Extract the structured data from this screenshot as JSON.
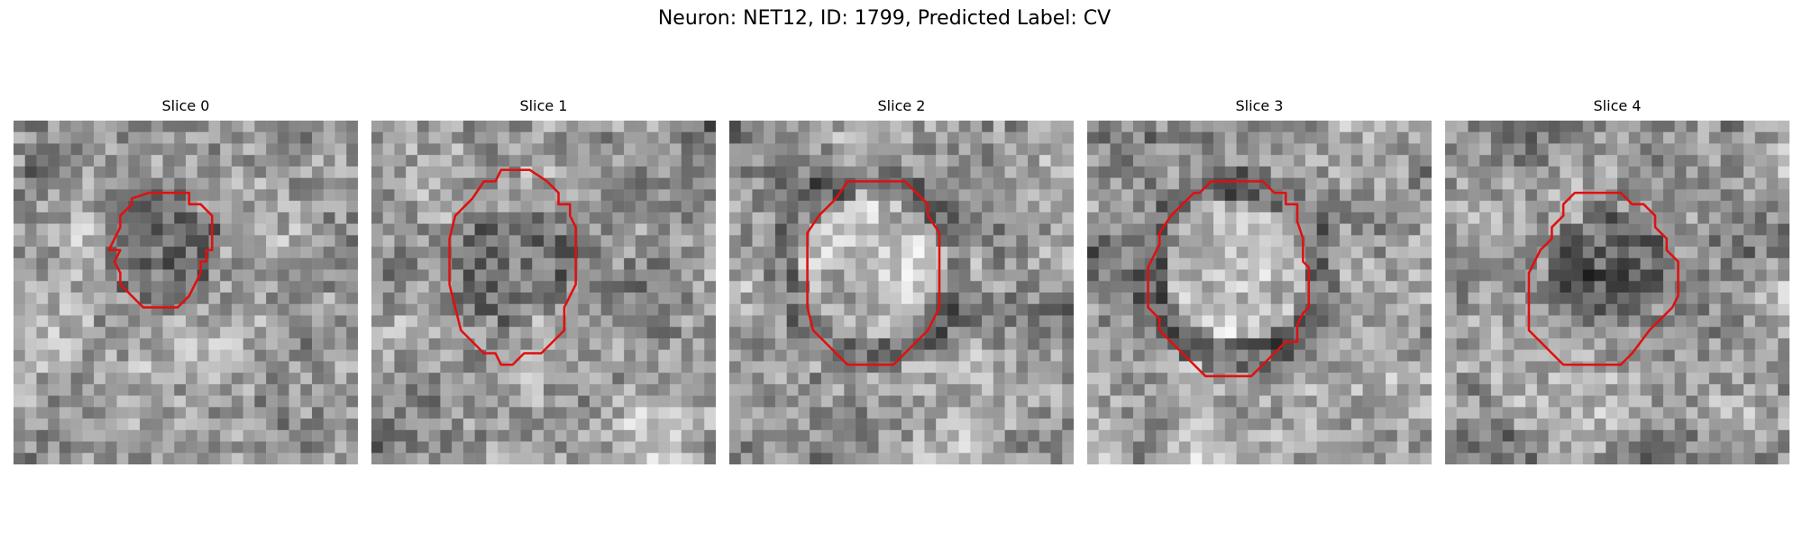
{
  "figure": {
    "title": "Neuron: NET12, ID: 1799, Predicted Label: CV",
    "outline_color": "#e01010"
  },
  "slices": [
    {
      "label": "Slice 0",
      "seed": 11,
      "center_dark": true,
      "contour": [
        [
          11.8,
          6.3
        ],
        [
          13.3,
          6.3
        ],
        [
          14.3,
          6.3
        ],
        [
          15.3,
          6.3
        ],
        [
          15.3,
          7.3
        ],
        [
          16.3,
          7.3
        ],
        [
          17.3,
          8.3
        ],
        [
          17.3,
          9.3
        ],
        [
          17.3,
          11.3
        ],
        [
          16.8,
          11.3
        ],
        [
          16.8,
          12.3
        ],
        [
          16.3,
          12.3
        ],
        [
          16.3,
          13.3
        ],
        [
          15.8,
          14.3
        ],
        [
          15.3,
          15.3
        ],
        [
          14.3,
          16.3
        ],
        [
          13.3,
          16.3
        ],
        [
          11.8,
          16.3
        ],
        [
          11.3,
          16.3
        ],
        [
          10.3,
          15.3
        ],
        [
          9.3,
          14.3
        ],
        [
          9.3,
          13.3
        ],
        [
          8.8,
          12.3
        ],
        [
          9.3,
          11.3
        ],
        [
          8.3,
          11.3
        ],
        [
          8.8,
          10.3
        ],
        [
          9.3,
          9.3
        ],
        [
          9.3,
          8.3
        ],
        [
          10.3,
          7.3
        ],
        [
          10.3,
          6.8
        ]
      ]
    },
    {
      "label": "Slice 1",
      "seed": 23,
      "center_dark": true,
      "contour": [
        [
          11.3,
          4.3
        ],
        [
          13.8,
          4.3
        ],
        [
          15.3,
          5.3
        ],
        [
          16.3,
          6.3
        ],
        [
          16.3,
          7.3
        ],
        [
          17.3,
          7.3
        ],
        [
          17.3,
          8.3
        ],
        [
          17.8,
          9.3
        ],
        [
          17.8,
          12.3
        ],
        [
          17.8,
          14.3
        ],
        [
          17.3,
          15.3
        ],
        [
          16.8,
          16.3
        ],
        [
          16.8,
          18.3
        ],
        [
          15.8,
          19.3
        ],
        [
          14.8,
          20.3
        ],
        [
          13.3,
          20.3
        ],
        [
          12.3,
          21.3
        ],
        [
          11.3,
          21.3
        ],
        [
          10.8,
          20.3
        ],
        [
          9.8,
          20.3
        ],
        [
          8.8,
          19.3
        ],
        [
          7.8,
          18.3
        ],
        [
          7.3,
          16.3
        ],
        [
          6.8,
          14.3
        ],
        [
          6.8,
          10.3
        ],
        [
          7.3,
          8.3
        ],
        [
          7.8,
          7.8
        ],
        [
          8.8,
          6.8
        ],
        [
          9.8,
          5.3
        ],
        [
          10.8,
          5.3
        ]
      ]
    },
    {
      "label": "Slice 2",
      "seed": 37,
      "center_dark": false,
      "contour": [
        [
          10.3,
          5.3
        ],
        [
          15.3,
          5.3
        ],
        [
          17.3,
          7.3
        ],
        [
          17.3,
          8.3
        ],
        [
          18.3,
          9.8
        ],
        [
          18.3,
          14.3
        ],
        [
          18.3,
          16.3
        ],
        [
          17.3,
          18.3
        ],
        [
          16.3,
          19.3
        ],
        [
          14.3,
          21.3
        ],
        [
          10.3,
          21.3
        ],
        [
          8.3,
          19.3
        ],
        [
          7.3,
          18.3
        ],
        [
          6.8,
          16.3
        ],
        [
          6.8,
          12.3
        ],
        [
          6.8,
          9.8
        ],
        [
          7.8,
          8.3
        ],
        [
          8.8,
          7.3
        ],
        [
          9.3,
          6.8
        ]
      ]
    },
    {
      "label": "Slice 3",
      "seed": 51,
      "center_dark": false,
      "contour": [
        [
          10.8,
          5.3
        ],
        [
          15.3,
          5.3
        ],
        [
          16.3,
          6.3
        ],
        [
          17.3,
          6.3
        ],
        [
          17.3,
          7.3
        ],
        [
          18.3,
          7.3
        ],
        [
          18.3,
          8.8
        ],
        [
          18.8,
          10.3
        ],
        [
          18.8,
          12.3
        ],
        [
          19.3,
          12.8
        ],
        [
          19.3,
          16.3
        ],
        [
          18.8,
          16.8
        ],
        [
          18.3,
          17.8
        ],
        [
          18.3,
          19.3
        ],
        [
          17.3,
          19.3
        ],
        [
          16.3,
          20.3
        ],
        [
          14.3,
          22.3
        ],
        [
          10.3,
          22.3
        ],
        [
          8.3,
          20.3
        ],
        [
          7.3,
          19.3
        ],
        [
          6.3,
          18.3
        ],
        [
          6.3,
          17.3
        ],
        [
          5.3,
          16.3
        ],
        [
          5.3,
          12.8
        ],
        [
          6.3,
          10.8
        ],
        [
          6.3,
          9.8
        ],
        [
          7.3,
          8.3
        ],
        [
          8.3,
          7.3
        ],
        [
          9.3,
          6.3
        ],
        [
          9.8,
          6.3
        ]
      ]
    },
    {
      "label": "Slice 4",
      "seed": 67,
      "center_dark": true,
      "contour": [
        [
          11.3,
          6.3
        ],
        [
          15.3,
          6.3
        ],
        [
          16.3,
          7.3
        ],
        [
          17.3,
          7.3
        ],
        [
          18.3,
          8.3
        ],
        [
          18.3,
          9.3
        ],
        [
          19.3,
          10.3
        ],
        [
          19.3,
          11.3
        ],
        [
          20.3,
          12.3
        ],
        [
          20.3,
          15.3
        ],
        [
          19.8,
          16.3
        ],
        [
          18.8,
          17.3
        ],
        [
          17.8,
          18.3
        ],
        [
          16.3,
          20.3
        ],
        [
          15.3,
          21.3
        ],
        [
          10.3,
          21.3
        ],
        [
          9.3,
          20.3
        ],
        [
          7.3,
          18.3
        ],
        [
          7.3,
          13.3
        ],
        [
          7.8,
          12.3
        ],
        [
          8.3,
          11.3
        ],
        [
          9.3,
          10.3
        ],
        [
          9.3,
          9.3
        ],
        [
          10.3,
          8.3
        ],
        [
          10.3,
          7.3
        ]
      ]
    }
  ]
}
